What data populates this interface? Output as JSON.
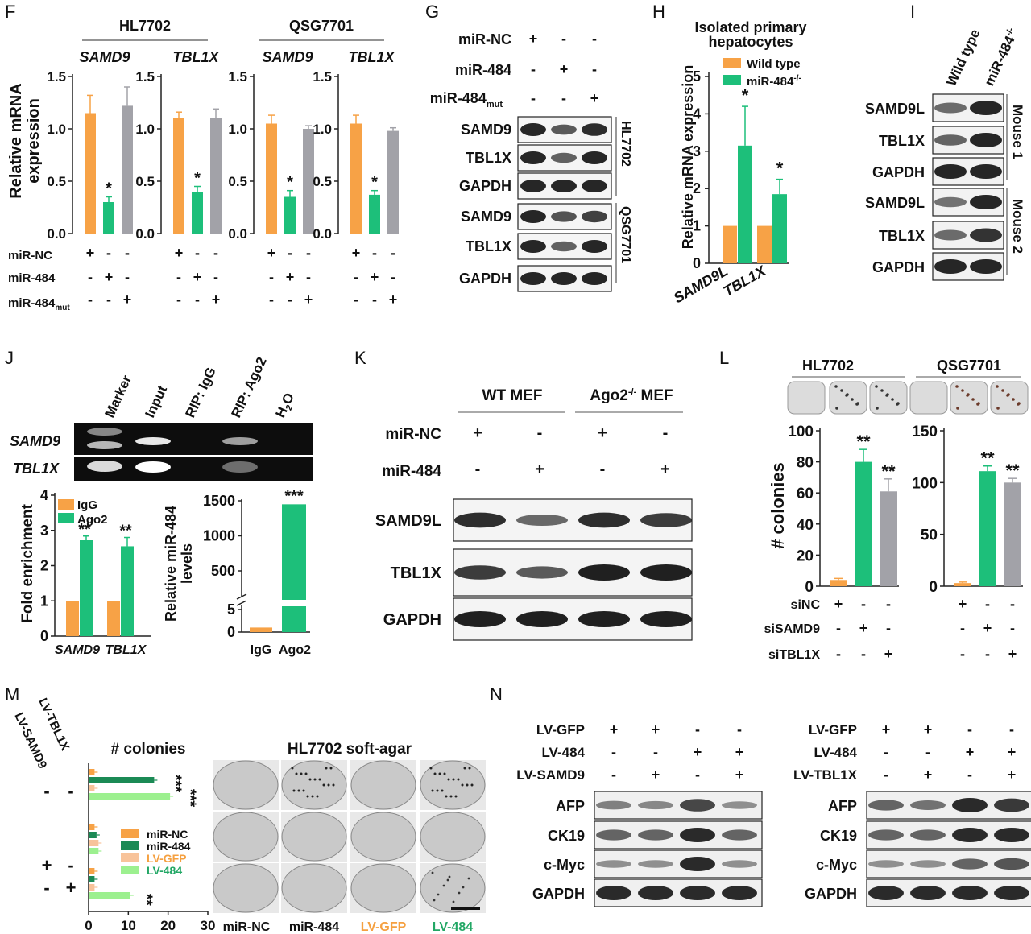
{
  "colors": {
    "orange": "#f7a246",
    "green": "#1dbf7a",
    "gray": "#a2a2a8",
    "darkgreen": "#1b8a55",
    "lightorange": "#f8c39a",
    "lightgreen": "#9cf08f",
    "lvgfp_text": "#f5a040",
    "lv484_text": "#22a765"
  },
  "panels": {
    "F": "F",
    "G": "G",
    "H": "H",
    "I": "I",
    "J": "J",
    "K": "K",
    "L": "L",
    "M": "M",
    "N": "N"
  },
  "F": {
    "groups": [
      "HL7702",
      "QSG7701"
    ],
    "genes": [
      "SAMD9",
      "TBL1X",
      "SAMD9",
      "TBL1X"
    ],
    "ylabel1": "Relative mRNA",
    "ylabel2": "expression",
    "yticks": [
      "1.5",
      "1.0",
      "0.5",
      "0.0"
    ],
    "rows": [
      "miR-NC",
      "miR-484",
      "miR-484"
    ],
    "row_sub": "mut",
    "plus": "+",
    "minus": "-",
    "star": "*"
  },
  "G": {
    "rows": [
      "miR-NC",
      "miR-484",
      "miR-484"
    ],
    "row_sub": "mut",
    "signs": [
      [
        "+",
        "-",
        "-"
      ],
      [
        "-",
        "+",
        "-"
      ],
      [
        "-",
        "-",
        "+"
      ]
    ],
    "blots": [
      "SAMD9",
      "TBL1X",
      "GAPDH",
      "SAMD9",
      "TBL1X",
      "GAPDH"
    ],
    "cells": [
      "HL7702",
      "QSG7701"
    ]
  },
  "H": {
    "title1": "Isolated primary",
    "title2": "hepatocytes",
    "ylabel": "Relative mRNA expression",
    "legend": [
      "Wild type",
      "miR-484"
    ],
    "legend_sup": "-/-",
    "yticks": [
      "5",
      "4",
      "3",
      "2",
      "1",
      "0"
    ],
    "xcats": [
      "SAMD9L",
      "TBL1X"
    ],
    "star": "*"
  },
  "I": {
    "cols": [
      "Wild type",
      "miR-484"
    ],
    "col_sup": "-/-",
    "blots": [
      "SAMD9L",
      "TBL1X",
      "GAPDH",
      "SAMD9L",
      "TBL1X",
      "GAPDH"
    ],
    "mice": [
      "Mouse 1",
      "Mouse 2"
    ]
  },
  "J": {
    "lanes": [
      "Marker",
      "Input",
      "RIP: IgG",
      "RIP: Ago2",
      "H"
    ],
    "h2o_sub": "2",
    "h2o_tail": "O",
    "genes": [
      "SAMD9",
      "TBL1X"
    ],
    "fold": {
      "ylabel": "Fold enrichment",
      "legend": [
        "IgG",
        "Ago2"
      ],
      "yticks": [
        "4",
        "3",
        "2",
        "1",
        "0"
      ],
      "xcats": [
        "SAMD9",
        "TBL1X"
      ],
      "stars": "**"
    },
    "mir": {
      "ylabel1": "Relative miR-484",
      "ylabel2": "levels",
      "yticks": [
        "1500",
        "1000",
        "500",
        "5",
        "0"
      ],
      "xcats": [
        "IgG",
        "Ago2"
      ],
      "stars": "***"
    }
  },
  "K": {
    "groups": [
      "WT MEF",
      "Ago2",
      "MEF"
    ],
    "group_sup": "-/-",
    "rows": [
      "miR-NC",
      "miR-484"
    ],
    "signs": [
      [
        "+",
        "-",
        "+",
        "-"
      ],
      [
        "-",
        "+",
        "-",
        "+"
      ]
    ],
    "blots": [
      "SAMD9L",
      "TBL1X",
      "GAPDH"
    ]
  },
  "L": {
    "groups": [
      "HL7702",
      "QSG7701"
    ],
    "ylabel": "# colonies",
    "yticks1": [
      "100",
      "80",
      "60",
      "40",
      "20",
      "0"
    ],
    "yticks2": [
      "150",
      "100",
      "50",
      "0"
    ],
    "rows": [
      "siNC",
      "siSAMD9",
      "siTBL1X"
    ],
    "signs": [
      [
        "+",
        "-",
        "-"
      ],
      [
        "-",
        "+",
        "-"
      ],
      [
        "-",
        "-",
        "+"
      ]
    ],
    "stars": "**"
  },
  "M": {
    "title": "# colonies",
    "rows": [
      "LV-SAMD9",
      "LV-TBL1X"
    ],
    "soft": "HL7702 soft-agar",
    "legend": [
      "miR-NC",
      "miR-484",
      "LV-GFP",
      "LV-484"
    ],
    "xticks": [
      "0",
      "10",
      "20",
      "30"
    ],
    "signs": [
      [
        "-",
        "-"
      ],
      [
        "+",
        "-"
      ],
      [
        "-",
        "+"
      ]
    ],
    "stars3": "***",
    "stars2": "**",
    "cols": [
      "miR-NC",
      "miR-484",
      "LV-GFP",
      "LV-484"
    ]
  },
  "N": {
    "left": {
      "rows": [
        "LV-GFP",
        "LV-484",
        "LV-SAMD9"
      ],
      "signs": [
        [
          "+",
          "+",
          "-",
          "-"
        ],
        [
          "-",
          "-",
          "+",
          "+"
        ],
        [
          "-",
          "+",
          "-",
          "+"
        ]
      ]
    },
    "right": {
      "rows": [
        "LV-GFP",
        "LV-484",
        "LV-TBL1X"
      ],
      "signs": [
        [
          "+",
          "+",
          "-",
          "-"
        ],
        [
          "-",
          "-",
          "+",
          "+"
        ],
        [
          "-",
          "+",
          "-",
          "+"
        ]
      ]
    },
    "blots": [
      "AFP",
      "CK19",
      "c-Myc",
      "GAPDH"
    ]
  },
  "chart_data": [
    {
      "type": "bar",
      "panel": "F",
      "title": "HL7702 SAMD9",
      "categories": [
        "miR-NC",
        "miR-484",
        "miR-484mut"
      ],
      "values": [
        1.15,
        0.3,
        1.22
      ],
      "errors": [
        0.17,
        0.05,
        0.18
      ],
      "ylim": [
        0,
        1.5
      ]
    },
    {
      "type": "bar",
      "panel": "F",
      "title": "HL7702 TBL1X",
      "categories": [
        "miR-NC",
        "miR-484",
        "miR-484mut"
      ],
      "values": [
        1.1,
        0.4,
        1.1
      ],
      "errors": [
        0.06,
        0.05,
        0.09
      ],
      "ylim": [
        0,
        1.5
      ]
    },
    {
      "type": "bar",
      "panel": "F",
      "title": "QSG7701 SAMD9",
      "categories": [
        "miR-NC",
        "miR-484",
        "miR-484mut"
      ],
      "values": [
        1.05,
        0.35,
        1.0
      ],
      "errors": [
        0.08,
        0.06,
        0.03
      ],
      "ylim": [
        0,
        1.5
      ]
    },
    {
      "type": "bar",
      "panel": "F",
      "title": "QSG7701 TBL1X",
      "categories": [
        "miR-NC",
        "miR-484",
        "miR-484mut"
      ],
      "values": [
        1.05,
        0.37,
        0.98
      ],
      "errors": [
        0.08,
        0.04,
        0.03
      ],
      "ylim": [
        0,
        1.5
      ]
    },
    {
      "type": "bar",
      "panel": "H",
      "categories": [
        "SAMD9L",
        "TBL1X"
      ],
      "series": [
        {
          "name": "Wild type",
          "values": [
            1,
            1
          ],
          "errors": [
            0,
            0
          ]
        },
        {
          "name": "miR-484-/-",
          "values": [
            3.15,
            1.85
          ],
          "errors": [
            1.05,
            0.4
          ]
        }
      ],
      "ylim": [
        0,
        5
      ]
    },
    {
      "type": "bar",
      "panel": "J",
      "categories": [
        "SAMD9",
        "TBL1X"
      ],
      "series": [
        {
          "name": "IgG",
          "values": [
            1,
            1
          ]
        },
        {
          "name": "Ago2",
          "values": [
            2.72,
            2.55
          ],
          "errors": [
            0.12,
            0.25
          ]
        }
      ],
      "ylim": [
        0,
        4
      ]
    },
    {
      "type": "bar",
      "panel": "J",
      "categories": [
        "IgG",
        "Ago2"
      ],
      "values": [
        1,
        1450
      ]
    },
    {
      "type": "bar",
      "panel": "L",
      "title": "HL7702",
      "categories": [
        "siNC",
        "siSAMD9",
        "siTBL1X"
      ],
      "values": [
        4,
        80,
        61
      ],
      "errors": [
        1,
        8,
        8
      ],
      "ylim": [
        0,
        100
      ]
    },
    {
      "type": "bar",
      "panel": "L",
      "title": "QSG7701",
      "categories": [
        "siNC",
        "siSAMD9",
        "siTBL1X"
      ],
      "values": [
        3,
        111,
        100
      ],
      "errors": [
        1,
        5,
        4
      ],
      "ylim": [
        0,
        150
      ]
    },
    {
      "type": "bar",
      "panel": "M",
      "orientation": "horizontal",
      "groups": [
        "- -",
        "+ -",
        "- +"
      ],
      "series": [
        {
          "name": "miR-NC",
          "values": [
            1.5,
            1.5,
            1.5
          ]
        },
        {
          "name": "miR-484",
          "values": [
            16.5,
            2,
            1.5
          ]
        },
        {
          "name": "LV-GFP",
          "values": [
            1.5,
            2.5,
            1.5
          ]
        },
        {
          "name": "LV-484",
          "values": [
            20.5,
            2.5,
            10.5
          ]
        }
      ],
      "xlim": [
        0,
        30
      ]
    }
  ]
}
